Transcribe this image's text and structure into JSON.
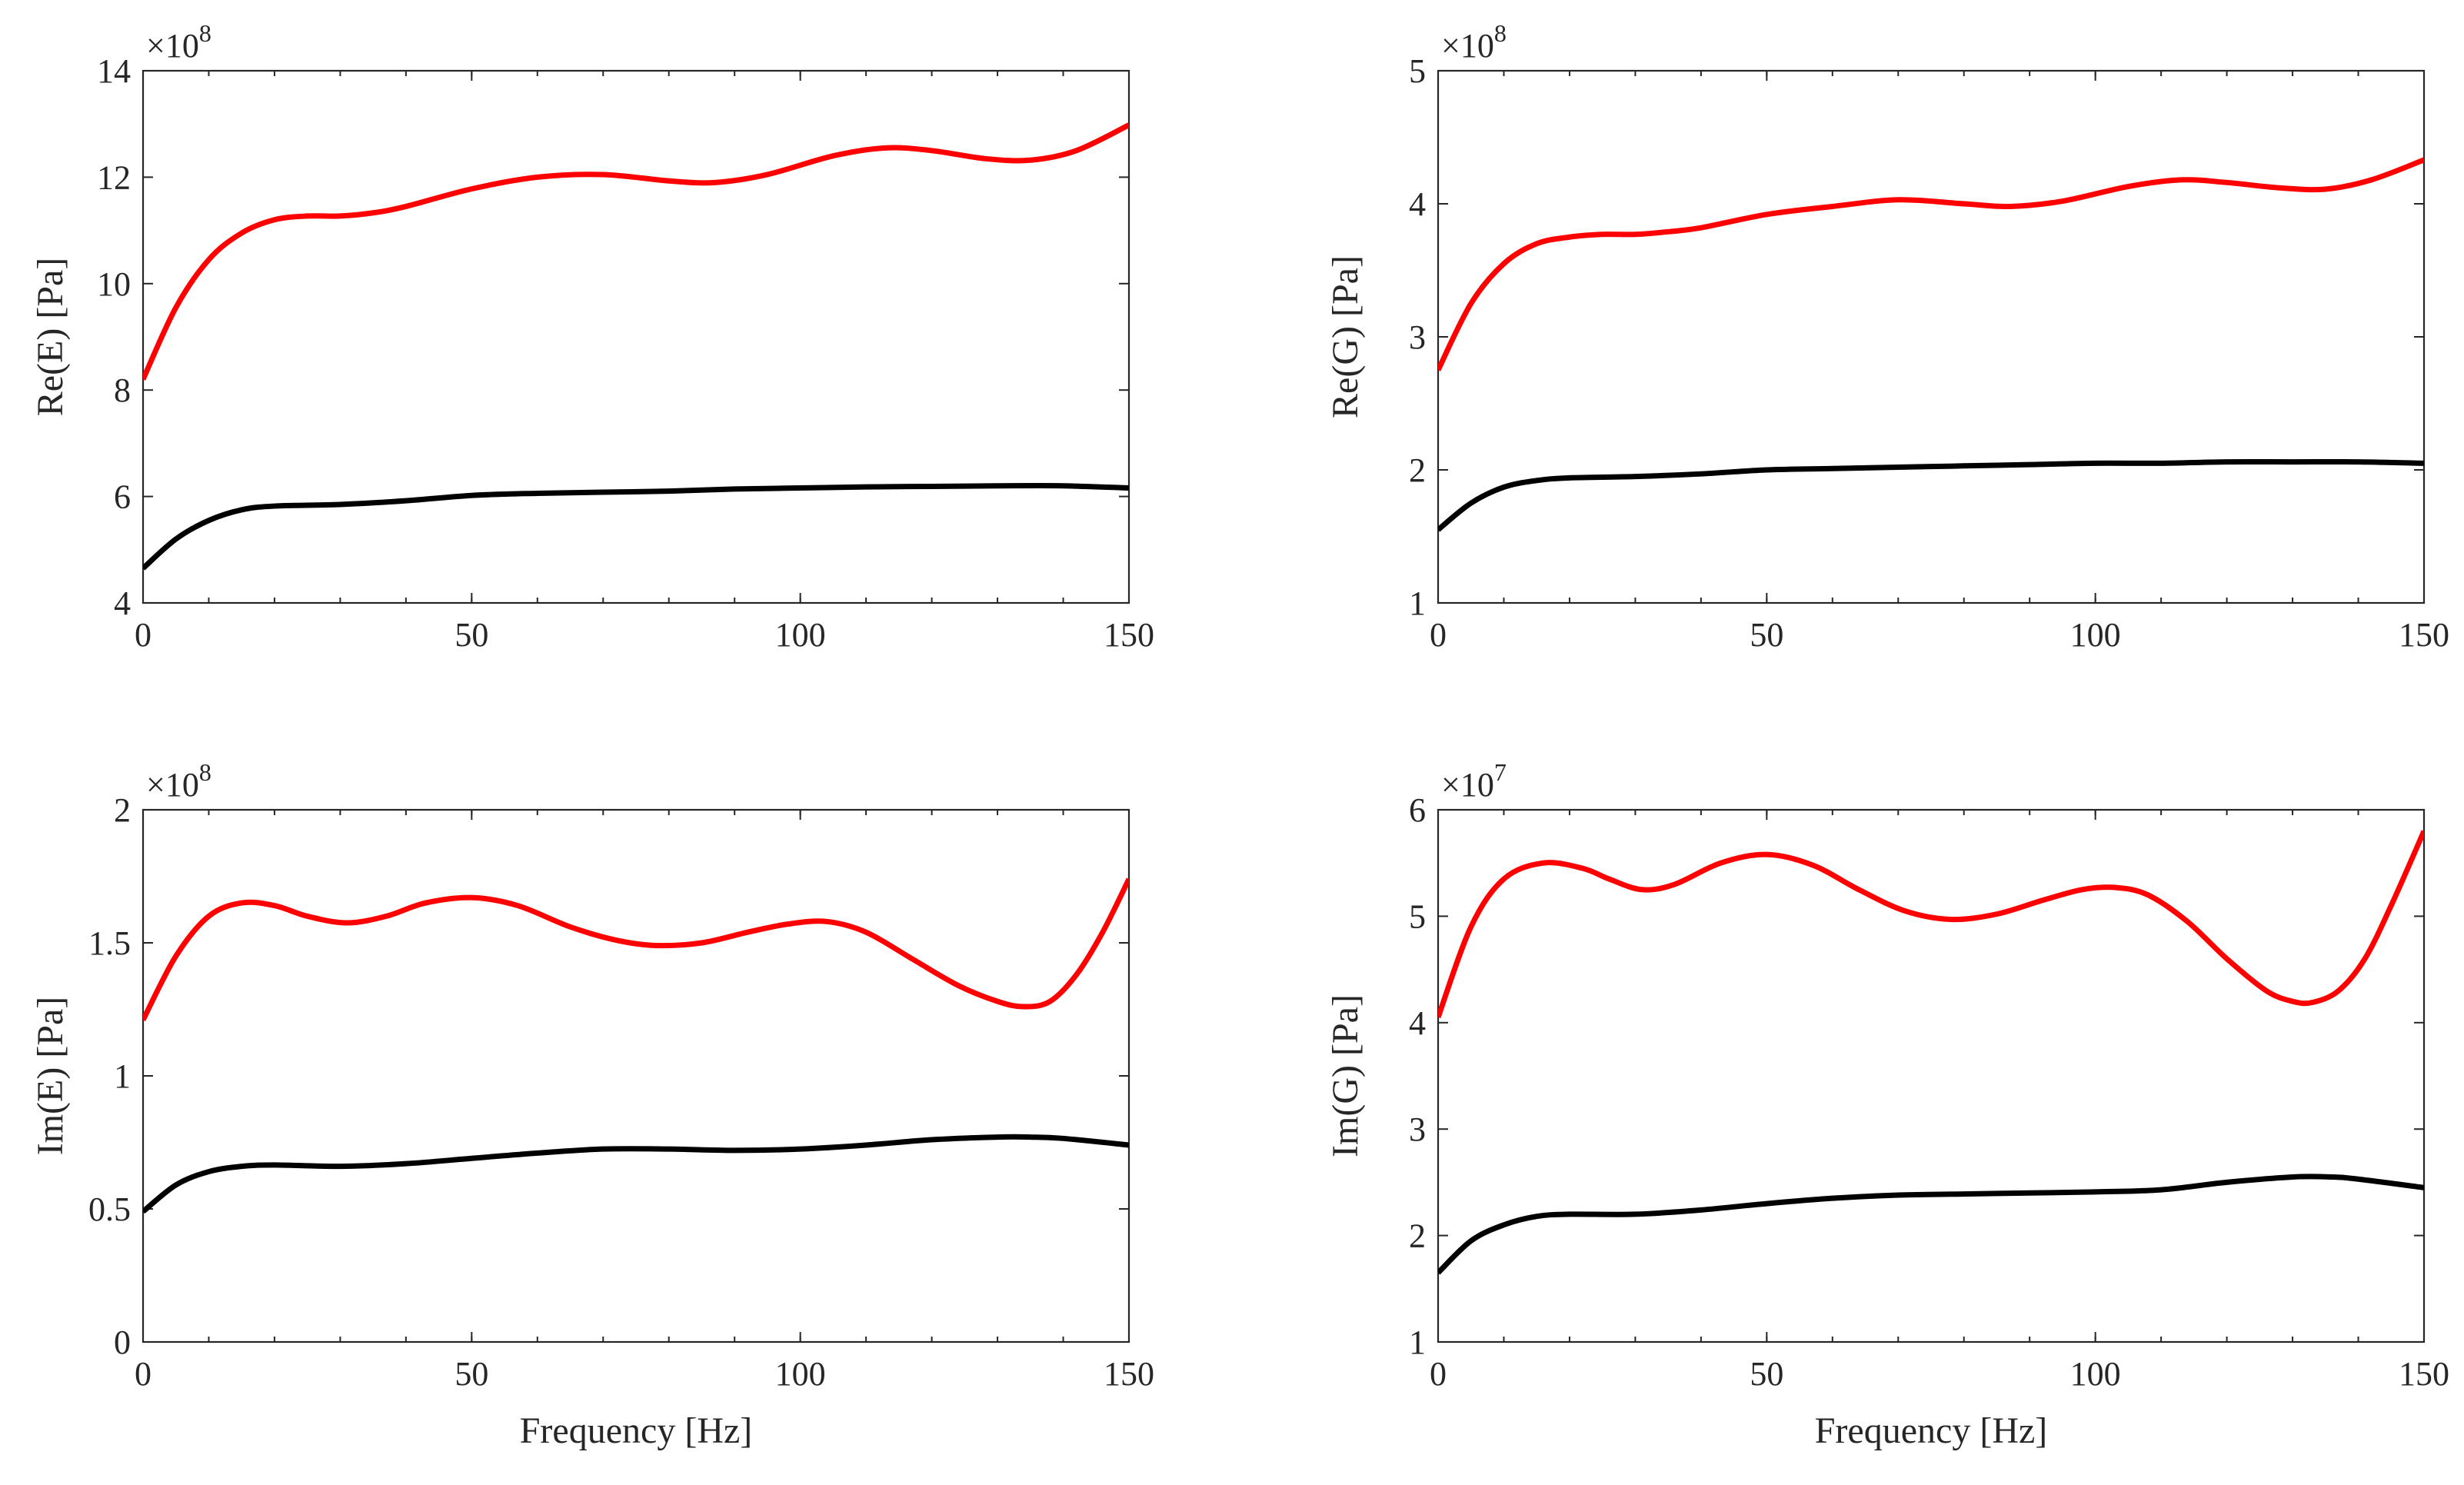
{
  "chart_data": [
    {
      "type": "line",
      "panel": "top-left",
      "xlabel": "",
      "ylabel": "Re(E) [Pa]",
      "exponent_base": "×10",
      "exponent": "8",
      "xlim": [
        0,
        150
      ],
      "ylim": [
        4,
        14
      ],
      "xticks": [
        0,
        50,
        100,
        150
      ],
      "yticks": [
        4,
        6,
        8,
        10,
        12,
        14
      ],
      "xtick_labels": [
        "0",
        "50",
        "100",
        "150"
      ],
      "ytick_labels": [
        "4",
        "6",
        "8",
        "10",
        "12",
        "14"
      ],
      "series": [
        {
          "name": "red",
          "color": "#ff0000",
          "x": [
            0,
            5,
            10,
            15,
            20,
            25,
            30,
            35,
            40,
            50,
            60,
            70,
            80,
            87,
            95,
            105,
            113,
            120,
            128,
            135,
            142,
            150
          ],
          "y": [
            8.2,
            9.55,
            10.45,
            10.95,
            11.2,
            11.27,
            11.27,
            11.33,
            11.45,
            11.78,
            12.0,
            12.05,
            11.93,
            11.9,
            12.05,
            12.4,
            12.55,
            12.5,
            12.35,
            12.32,
            12.5,
            12.98
          ]
        },
        {
          "name": "black",
          "color": "#000000",
          "x": [
            0,
            5,
            10,
            15,
            20,
            30,
            40,
            50,
            60,
            70,
            80,
            90,
            100,
            110,
            120,
            130,
            140,
            150
          ],
          "y": [
            4.65,
            5.2,
            5.55,
            5.75,
            5.82,
            5.85,
            5.92,
            6.02,
            6.06,
            6.08,
            6.1,
            6.14,
            6.16,
            6.18,
            6.19,
            6.2,
            6.2,
            6.16
          ]
        }
      ]
    },
    {
      "type": "line",
      "panel": "top-right",
      "xlabel": "",
      "ylabel": "Re(G) [Pa]",
      "exponent_base": "×10",
      "exponent": "8",
      "xlim": [
        0,
        150
      ],
      "ylim": [
        1,
        5
      ],
      "xticks": [
        0,
        50,
        100,
        150
      ],
      "yticks": [
        1,
        2,
        3,
        4,
        5
      ],
      "xtick_labels": [
        "0",
        "50",
        "100",
        "150"
      ],
      "ytick_labels": [
        "1",
        "2",
        "3",
        "4",
        "5"
      ],
      "series": [
        {
          "name": "red",
          "color": "#ff0000",
          "x": [
            0,
            5,
            10,
            15,
            20,
            25,
            30,
            35,
            40,
            50,
            60,
            70,
            80,
            87,
            95,
            105,
            113,
            120,
            128,
            135,
            142,
            150
          ],
          "y": [
            2.75,
            3.25,
            3.55,
            3.7,
            3.75,
            3.77,
            3.77,
            3.79,
            3.82,
            3.92,
            3.98,
            4.03,
            4.0,
            3.98,
            4.02,
            4.13,
            4.18,
            4.16,
            4.12,
            4.11,
            4.18,
            4.33
          ]
        },
        {
          "name": "black",
          "color": "#000000",
          "x": [
            0,
            5,
            10,
            15,
            20,
            30,
            40,
            50,
            60,
            70,
            80,
            90,
            100,
            110,
            120,
            130,
            140,
            150
          ],
          "y": [
            1.55,
            1.75,
            1.87,
            1.92,
            1.94,
            1.95,
            1.97,
            2.0,
            2.01,
            2.02,
            2.03,
            2.04,
            2.05,
            2.05,
            2.06,
            2.06,
            2.06,
            2.05
          ]
        }
      ]
    },
    {
      "type": "line",
      "panel": "bottom-left",
      "xlabel": "Frequency [Hz]",
      "ylabel": "Im(E) [Pa]",
      "exponent_base": "×10",
      "exponent": "8",
      "xlim": [
        0,
        150
      ],
      "ylim": [
        0,
        2
      ],
      "xticks": [
        0,
        50,
        100,
        150
      ],
      "yticks": [
        0,
        0.5,
        1,
        1.5,
        2
      ],
      "xtick_labels": [
        "0",
        "50",
        "100",
        "150"
      ],
      "ytick_labels": [
        "0",
        "0.5",
        "1",
        "1.5",
        "2"
      ],
      "series": [
        {
          "name": "red",
          "color": "#ff0000",
          "x": [
            0,
            5,
            10,
            15,
            20,
            25,
            31,
            37,
            43,
            50,
            57,
            65,
            72,
            78,
            85,
            92,
            98,
            104,
            110,
            117,
            124,
            130,
            134,
            138,
            142,
            146,
            150
          ],
          "y": [
            1.21,
            1.45,
            1.6,
            1.65,
            1.64,
            1.6,
            1.575,
            1.6,
            1.65,
            1.67,
            1.64,
            1.56,
            1.51,
            1.49,
            1.5,
            1.54,
            1.57,
            1.58,
            1.54,
            1.44,
            1.34,
            1.28,
            1.26,
            1.28,
            1.38,
            1.54,
            1.74
          ]
        },
        {
          "name": "black",
          "color": "#000000",
          "x": [
            0,
            5,
            10,
            15,
            20,
            30,
            40,
            50,
            60,
            70,
            80,
            90,
            100,
            110,
            120,
            130,
            135,
            140,
            150
          ],
          "y": [
            0.49,
            0.59,
            0.64,
            0.66,
            0.665,
            0.66,
            0.67,
            0.69,
            0.71,
            0.725,
            0.725,
            0.72,
            0.725,
            0.74,
            0.76,
            0.77,
            0.77,
            0.765,
            0.74
          ]
        }
      ]
    },
    {
      "type": "line",
      "panel": "bottom-right",
      "xlabel": "Frequency [Hz]",
      "ylabel": "Im(G) [Pa]",
      "exponent_base": "×10",
      "exponent": "7",
      "xlim": [
        0,
        150
      ],
      "ylim": [
        1,
        6
      ],
      "xticks": [
        0,
        50,
        100,
        150
      ],
      "yticks": [
        1,
        2,
        3,
        4,
        5,
        6
      ],
      "xtick_labels": [
        "0",
        "50",
        "100",
        "150"
      ],
      "ytick_labels": [
        "1",
        "2",
        "3",
        "4",
        "5",
        "6"
      ],
      "series": [
        {
          "name": "red",
          "color": "#ff0000",
          "x": [
            0,
            5,
            10,
            16,
            22,
            26,
            31,
            36,
            43,
            50,
            57,
            64,
            71,
            78,
            85,
            92,
            98,
            103,
            108,
            114,
            120,
            126,
            130,
            133,
            137,
            141,
            145,
            150
          ],
          "y": [
            4.05,
            4.9,
            5.35,
            5.5,
            5.45,
            5.35,
            5.25,
            5.3,
            5.5,
            5.58,
            5.48,
            5.25,
            5.05,
            4.97,
            5.02,
            5.15,
            5.25,
            5.27,
            5.2,
            4.95,
            4.6,
            4.3,
            4.2,
            4.19,
            4.3,
            4.6,
            5.1,
            5.8
          ]
        },
        {
          "name": "black",
          "color": "#000000",
          "x": [
            0,
            5,
            10,
            15,
            20,
            30,
            40,
            50,
            60,
            70,
            80,
            90,
            100,
            110,
            120,
            130,
            136,
            140,
            150
          ],
          "y": [
            1.65,
            1.95,
            2.1,
            2.18,
            2.2,
            2.2,
            2.24,
            2.3,
            2.35,
            2.38,
            2.39,
            2.4,
            2.41,
            2.43,
            2.5,
            2.55,
            2.55,
            2.53,
            2.45
          ]
        }
      ]
    }
  ]
}
